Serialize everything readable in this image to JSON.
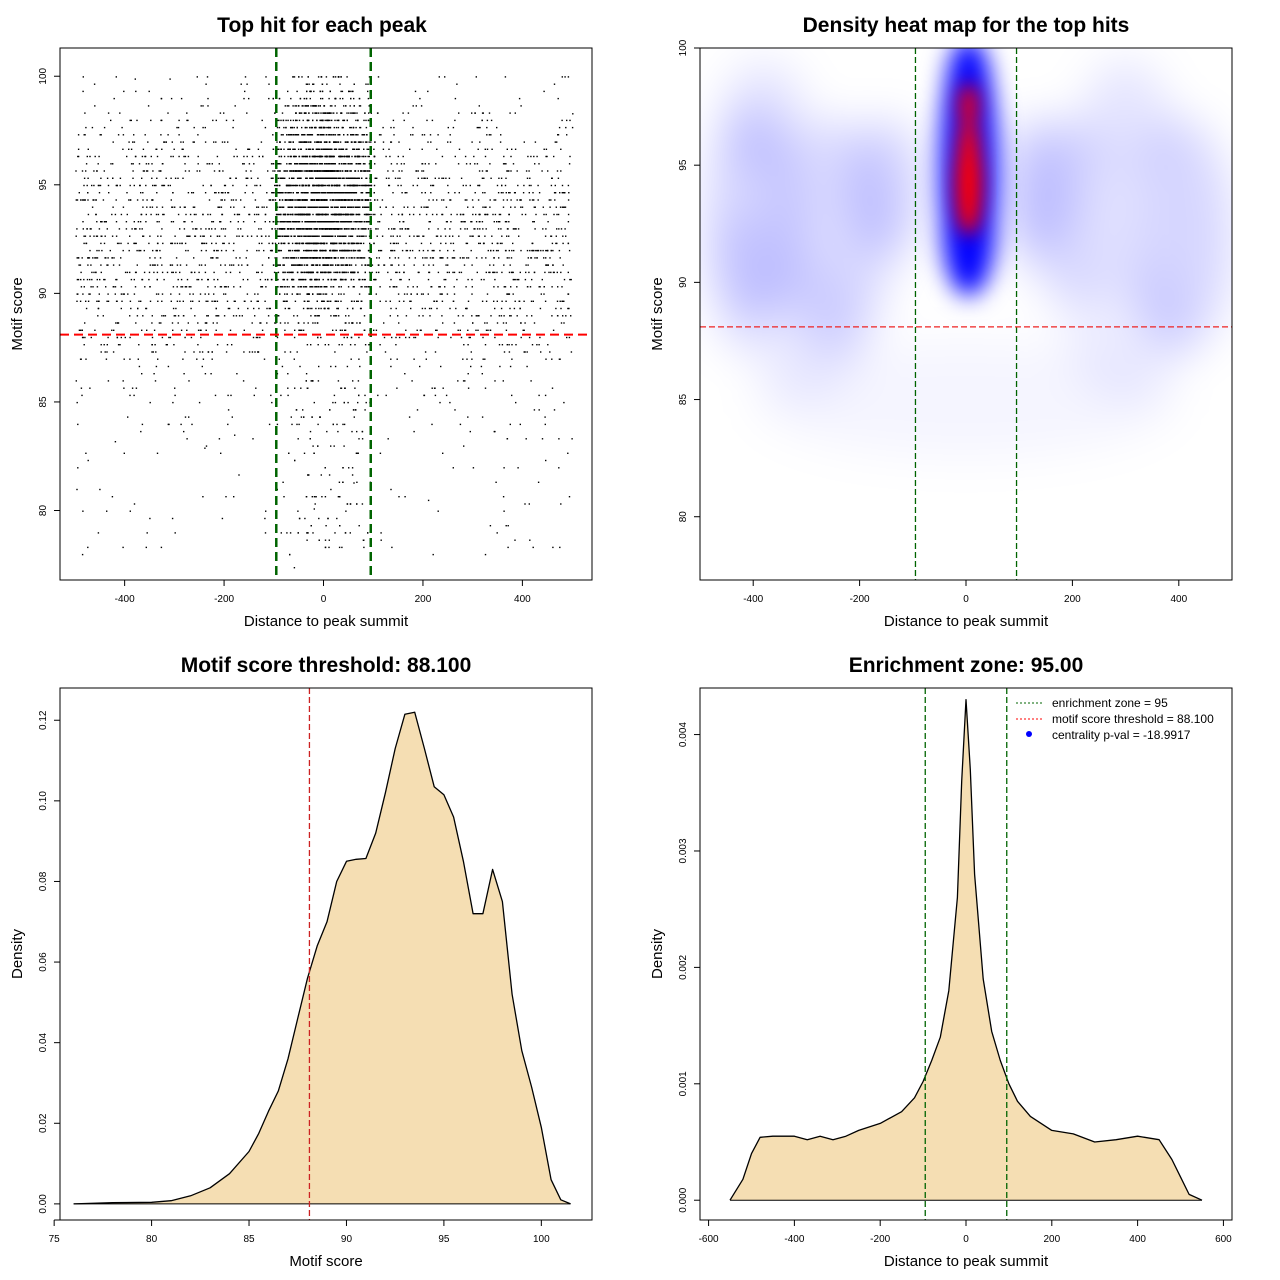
{
  "chart_data": [
    {
      "type": "scatter",
      "title": "Top hit for each peak",
      "xlabel": "Distance to peak summit",
      "ylabel": "Motif score",
      "xlim": [
        -530,
        540
      ],
      "ylim": [
        76.8,
        101.3
      ],
      "xticks": [
        -400,
        -200,
        0,
        200,
        400
      ],
      "yticks": [
        80,
        85,
        90,
        95,
        100
      ],
      "vlines": [
        -95,
        95
      ],
      "hline": 88.1,
      "colors": {
        "points": "#000000",
        "vlines": "#006400",
        "hline": "#ff0000"
      },
      "points_description": "about 6000 top hits spread over -500..500; dense concentration within -95..95 at scores 88-100; score mostly 84-100 with sparse tail down to ~77",
      "sample_points": [
        [
          -420,
          83.2
        ],
        [
          -380,
          99.9
        ],
        [
          -310,
          99.9
        ],
        [
          -240,
          82.9
        ],
        [
          -180,
          83.5
        ],
        [
          -60,
          77.4
        ],
        [
          -20,
          80.1
        ],
        [
          60,
          81.3
        ],
        [
          210,
          80.5
        ],
        [
          300,
          82.0
        ],
        [
          390,
          82.0
        ],
        [
          500,
          98.3
        ]
      ]
    },
    {
      "type": "heatmap",
      "title": "Density heat map for the top hits",
      "xlabel": "Distance to peak summit",
      "ylabel": "Motif score",
      "xlim": [
        -500,
        500
      ],
      "ylim": [
        77.3,
        100
      ],
      "xticks": [
        -400,
        -200,
        0,
        200,
        400
      ],
      "yticks": [
        80,
        85,
        90,
        95,
        100
      ],
      "vlines": [
        -95,
        95
      ],
      "hline": 88.1,
      "colorscale": [
        "#ffffff",
        "#0000ff",
        "#ff0000"
      ],
      "peak": {
        "x": 5,
        "y": 94.2
      },
      "secondary_peak": {
        "x": 5,
        "y": 97.5
      }
    },
    {
      "type": "area",
      "title": "Motif score threshold: 88.100",
      "xlabel": "Motif score",
      "ylabel": "Density",
      "xlim": [
        75.3,
        102.6
      ],
      "ylim": [
        -0.004,
        0.128
      ],
      "xticks": [
        75,
        80,
        85,
        90,
        95,
        100
      ],
      "yticks": [
        0.0,
        0.02,
        0.04,
        0.06,
        0.08,
        0.1,
        0.12
      ],
      "ytick_labels": [
        "0.00",
        "0.02",
        "0.04",
        "0.06",
        "0.08",
        "0.10",
        "0.12"
      ],
      "vline": 88.1,
      "fill": "#f5deb3",
      "x": [
        76,
        78,
        80,
        81,
        82,
        83,
        84,
        85,
        85.5,
        86,
        86.5,
        87,
        87.5,
        88,
        88.5,
        89,
        89.5,
        90,
        90.5,
        91,
        91.5,
        92,
        92.5,
        93,
        93.5,
        94,
        94.5,
        95,
        95.5,
        96,
        96.5,
        97,
        97.5,
        98,
        98.5,
        99,
        99.5,
        100,
        100.5,
        101,
        101.5
      ],
      "y": [
        0.0,
        0.0003,
        0.0004,
        0.0008,
        0.002,
        0.004,
        0.0075,
        0.013,
        0.0175,
        0.023,
        0.028,
        0.036,
        0.046,
        0.056,
        0.064,
        0.07,
        0.08,
        0.085,
        0.0855,
        0.0857,
        0.092,
        0.102,
        0.113,
        0.1215,
        0.122,
        0.113,
        0.1035,
        0.1015,
        0.096,
        0.085,
        0.072,
        0.072,
        0.083,
        0.075,
        0.052,
        0.038,
        0.029,
        0.019,
        0.006,
        0.001,
        0.0
      ]
    },
    {
      "type": "area",
      "title": "Enrichment zone: 95.00",
      "xlabel": "Distance to peak summit",
      "ylabel": "Density",
      "xlim": [
        -620,
        620
      ],
      "ylim": [
        -0.00017,
        0.0044
      ],
      "xticks": [
        -600,
        -400,
        -200,
        0,
        200,
        400,
        600
      ],
      "yticks": [
        0.0,
        0.001,
        0.002,
        0.003,
        0.004
      ],
      "ytick_labels": [
        "0.000",
        "0.001",
        "0.002",
        "0.003",
        "0.004"
      ],
      "vlines": [
        -95,
        95
      ],
      "fill": "#f5deb3",
      "x": [
        -550,
        -520,
        -500,
        -480,
        -450,
        -400,
        -370,
        -340,
        -310,
        -280,
        -250,
        -200,
        -150,
        -120,
        -100,
        -80,
        -60,
        -40,
        -20,
        -10,
        0,
        10,
        20,
        40,
        60,
        80,
        100,
        120,
        150,
        200,
        250,
        300,
        350,
        400,
        450,
        480,
        500,
        520,
        550
      ],
      "y": [
        0.0,
        0.00018,
        0.0004,
        0.00054,
        0.00055,
        0.00055,
        0.00052,
        0.00055,
        0.00052,
        0.00055,
        0.0006,
        0.00066,
        0.00076,
        0.00088,
        0.00102,
        0.0012,
        0.0014,
        0.0018,
        0.0026,
        0.0036,
        0.0043,
        0.0037,
        0.0028,
        0.0019,
        0.00145,
        0.0012,
        0.001,
        0.00085,
        0.00072,
        0.0006,
        0.00057,
        0.0005,
        0.00052,
        0.00055,
        0.00052,
        0.00035,
        0.0002,
        5e-05,
        0.0
      ]
    }
  ],
  "legend": {
    "items": [
      {
        "label": "enrichment zone = 95",
        "symbol": "line",
        "color": "#006400"
      },
      {
        "label": "motif score threshold = 88.100",
        "symbol": "line",
        "color": "#ff0000"
      },
      {
        "label": "centrality p-val = -18.9917",
        "symbol": "dot",
        "color": "#0000ff"
      }
    ]
  }
}
